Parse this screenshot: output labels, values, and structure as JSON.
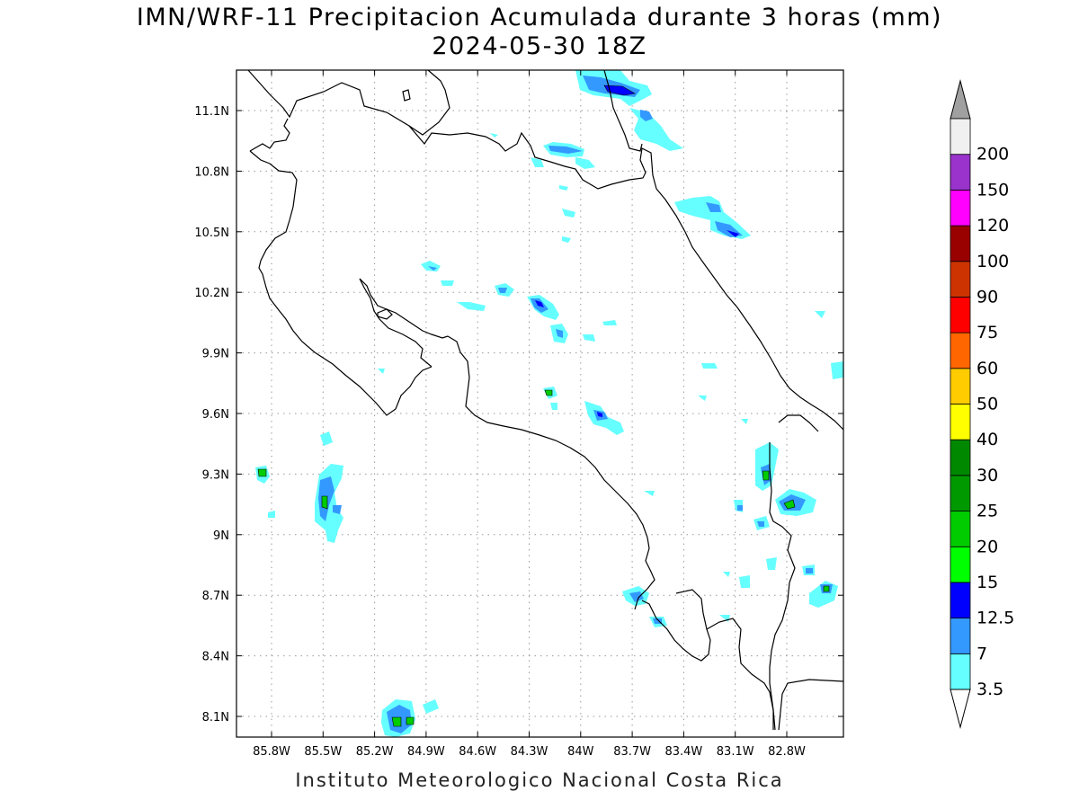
{
  "header": {
    "title": "IMN/WRF-11 Precipitacion Acumulada durante 3 horas (mm)",
    "subtitle": "2024-05-30 18Z"
  },
  "footer": {
    "credit": "Instituto Meteorologico Nacional Costa Rica"
  },
  "map": {
    "lat_ticks": [
      "11.1N",
      "10.8N",
      "10.5N",
      "10.2N",
      "9.9N",
      "9.6N",
      "9.3N",
      "9N",
      "8.7N",
      "8.4N",
      "8.1N"
    ],
    "lon_ticks": [
      "85.8W",
      "85.5W",
      "85.2W",
      "84.9W",
      "84.6W",
      "84.3W",
      "84W",
      "83.7W",
      "83.4W",
      "83.1W",
      "82.8W"
    ],
    "grid": true
  },
  "colorbar": {
    "levels": [
      {
        "label": "3.5",
        "color": "#66ffff"
      },
      {
        "label": "7",
        "color": "#3399ff"
      },
      {
        "label": "12.5",
        "color": "#0000ff"
      },
      {
        "label": "15",
        "color": "#00ff00"
      },
      {
        "label": "20",
        "color": "#00cc00"
      },
      {
        "label": "25",
        "color": "#009900"
      },
      {
        "label": "30",
        "color": "#008800"
      },
      {
        "label": "40",
        "color": "#ffff00"
      },
      {
        "label": "50",
        "color": "#ffcc00"
      },
      {
        "label": "60",
        "color": "#ff6600"
      },
      {
        "label": "75",
        "color": "#ff0000"
      },
      {
        "label": "90",
        "color": "#cc3300"
      },
      {
        "label": "100",
        "color": "#990000"
      },
      {
        "label": "120",
        "color": "#ff00ff"
      },
      {
        "label": "150",
        "color": "#9933cc"
      },
      {
        "label": "200",
        "color": "#f0f0f0"
      }
    ],
    "top_triangle_color": "#a0a0a0",
    "bottom_triangle_color": "#ffffff"
  }
}
